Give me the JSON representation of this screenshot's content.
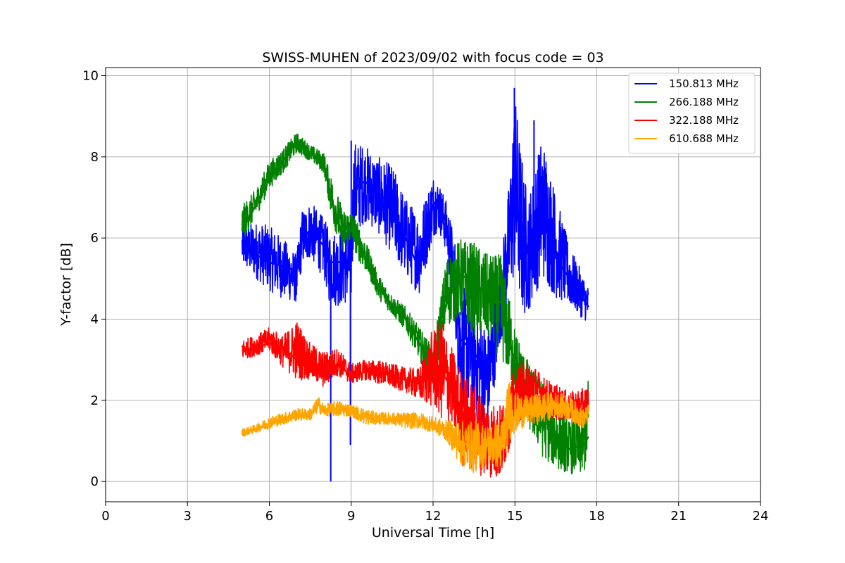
{
  "chart_data": {
    "type": "line",
    "title": "SWISS-MUHEN of 2023/09/02 with focus code = 03",
    "xlabel": "Universal Time [h]",
    "ylabel": "Y-factor [dB]",
    "xlim": [
      0,
      24
    ],
    "ylim": [
      -0.5,
      10.2
    ],
    "xticks": [
      0,
      3,
      6,
      9,
      12,
      15,
      18,
      21,
      24
    ],
    "yticks": [
      0,
      2,
      4,
      6,
      8,
      10
    ],
    "grid": true,
    "legend_position": "top-right",
    "series": [
      {
        "name": "150.813 MHz",
        "color": "#0000ff",
        "x": [
          5.0,
          5.5,
          6.0,
          6.5,
          7.0,
          7.2,
          7.5,
          8.0,
          8.2,
          8.5,
          9.0,
          9.1,
          9.5,
          10.0,
          10.5,
          11.0,
          11.5,
          12.0,
          12.2,
          12.5,
          12.8,
          13.0,
          13.5,
          14.0,
          14.5,
          14.8,
          15.0,
          15.3,
          15.5,
          16.0,
          16.5,
          17.0,
          17.5,
          17.7
        ],
        "y": [
          5.8,
          5.6,
          5.4,
          5.3,
          5.2,
          6.0,
          6.2,
          5.8,
          5.4,
          5.4,
          5.5,
          7.2,
          7.4,
          7.1,
          6.8,
          6.0,
          5.2,
          6.8,
          7.0,
          6.3,
          5.0,
          3.5,
          3.2,
          2.6,
          4.5,
          6.0,
          6.8,
          6.3,
          5.5,
          6.5,
          5.5,
          5.0,
          4.5,
          4.3
        ],
        "range_y": [
          [
            5.3,
            6.3
          ],
          [
            5.0,
            6.4
          ],
          [
            4.7,
            6.3
          ],
          [
            4.5,
            6.0
          ],
          [
            4.4,
            5.6
          ],
          [
            5.3,
            6.7
          ],
          [
            5.5,
            6.9
          ],
          [
            5.0,
            6.5
          ],
          [
            4.4,
            6.2
          ],
          [
            4.3,
            6.2
          ],
          [
            4.4,
            6.5
          ],
          [
            6.0,
            8.4
          ],
          [
            6.4,
            8.3
          ],
          [
            6.1,
            8.0
          ],
          [
            5.6,
            7.8
          ],
          [
            5.0,
            7.0
          ],
          [
            4.6,
            6.6
          ],
          [
            6.0,
            7.6
          ],
          [
            6.2,
            7.4
          ],
          [
            5.6,
            6.9
          ],
          [
            3.8,
            6.0
          ],
          [
            1.8,
            4.8
          ],
          [
            1.5,
            4.7
          ],
          [
            1.2,
            3.7
          ],
          [
            3.5,
            5.5
          ],
          [
            4.5,
            7.5
          ],
          [
            5.0,
            9.6
          ],
          [
            4.0,
            7.8
          ],
          [
            4.2,
            7.0
          ],
          [
            5.0,
            8.6
          ],
          [
            4.5,
            7.1
          ],
          [
            4.3,
            5.8
          ],
          [
            4.0,
            5.1
          ],
          [
            3.9,
            4.8
          ]
        ],
        "spikes": [
          [
            8.25,
            0.0
          ],
          [
            8.97,
            0.9
          ],
          [
            9.0,
            8.4
          ],
          [
            14.98,
            9.7
          ],
          [
            15.7,
            8.9
          ]
        ]
      },
      {
        "name": "266.188 MHz",
        "color": "#008000",
        "x": [
          5.0,
          5.5,
          6.0,
          6.5,
          7.0,
          7.5,
          8.0,
          8.3,
          8.7,
          9.0,
          9.3,
          9.6,
          10.0,
          10.5,
          11.0,
          11.5,
          12.0,
          12.5,
          13.0,
          13.5,
          14.0,
          14.5,
          15.0,
          15.5,
          16.0,
          16.5,
          17.0,
          17.5,
          17.7
        ],
        "y": [
          6.2,
          6.8,
          7.5,
          7.9,
          8.4,
          8.1,
          7.8,
          6.9,
          6.0,
          6.2,
          5.8,
          5.4,
          4.8,
          4.3,
          4.0,
          3.4,
          2.8,
          4.4,
          5.1,
          4.9,
          4.6,
          4.4,
          2.9,
          2.1,
          1.6,
          1.1,
          0.8,
          0.9,
          1.1
        ],
        "range_y": [
          [
            5.9,
            6.8
          ],
          [
            6.5,
            7.2
          ],
          [
            7.2,
            7.9
          ],
          [
            7.6,
            8.2
          ],
          [
            8.1,
            8.6
          ],
          [
            7.9,
            8.3
          ],
          [
            7.6,
            8.1
          ],
          [
            6.4,
            7.5
          ],
          [
            5.6,
            6.7
          ],
          [
            5.9,
            6.7
          ],
          [
            5.4,
            6.3
          ],
          [
            5.1,
            5.8
          ],
          [
            4.5,
            5.1
          ],
          [
            4.1,
            4.6
          ],
          [
            3.7,
            4.3
          ],
          [
            3.0,
            3.8
          ],
          [
            2.3,
            3.3
          ],
          [
            3.8,
            5.6
          ],
          [
            4.0,
            6.0
          ],
          [
            3.6,
            5.9
          ],
          [
            3.5,
            5.6
          ],
          [
            3.0,
            5.6
          ],
          [
            2.2,
            3.8
          ],
          [
            1.3,
            2.9
          ],
          [
            0.6,
            2.5
          ],
          [
            0.3,
            1.9
          ],
          [
            0.2,
            1.5
          ],
          [
            0.1,
            1.8
          ],
          [
            0.5,
            2.7
          ]
        ]
      },
      {
        "name": "322.188 MHz",
        "color": "#ff0000",
        "x": [
          5.0,
          5.5,
          6.0,
          6.5,
          7.0,
          7.5,
          8.0,
          8.5,
          9.0,
          9.5,
          10.0,
          10.5,
          11.0,
          11.5,
          12.0,
          12.3,
          12.7,
          13.0,
          13.5,
          14.0,
          14.5,
          15.0,
          15.5,
          16.0,
          16.5,
          17.0,
          17.5,
          17.7
        ],
        "y": [
          3.2,
          3.3,
          3.4,
          3.3,
          3.0,
          2.9,
          2.7,
          2.9,
          2.6,
          2.7,
          2.7,
          2.6,
          2.5,
          2.4,
          2.6,
          2.7,
          2.3,
          1.6,
          1.3,
          1.1,
          1.0,
          1.9,
          2.1,
          2.1,
          1.9,
          1.8,
          1.8,
          2.0
        ],
        "range_y": [
          [
            3.0,
            3.5
          ],
          [
            3.1,
            3.6
          ],
          [
            3.2,
            3.8
          ],
          [
            2.8,
            3.6
          ],
          [
            2.5,
            4.0
          ],
          [
            2.5,
            3.4
          ],
          [
            2.3,
            3.2
          ],
          [
            2.6,
            3.3
          ],
          [
            2.4,
            2.9
          ],
          [
            2.5,
            3.0
          ],
          [
            2.4,
            3.0
          ],
          [
            2.3,
            2.9
          ],
          [
            2.2,
            2.8
          ],
          [
            2.0,
            2.8
          ],
          [
            1.8,
            3.8
          ],
          [
            1.5,
            4.0
          ],
          [
            1.4,
            3.3
          ],
          [
            0.4,
            2.8
          ],
          [
            0.2,
            2.4
          ],
          [
            0.1,
            2.0
          ],
          [
            0.0,
            1.9
          ],
          [
            1.4,
            2.8
          ],
          [
            1.6,
            3.1
          ],
          [
            1.7,
            2.6
          ],
          [
            1.5,
            2.4
          ],
          [
            1.5,
            2.2
          ],
          [
            1.4,
            2.3
          ],
          [
            1.6,
            2.4
          ]
        ]
      },
      {
        "name": "610.688 MHz",
        "color": "#ffa500",
        "x": [
          5.0,
          5.5,
          6.0,
          6.5,
          7.0,
          7.5,
          7.8,
          8.0,
          8.5,
          9.0,
          9.5,
          10.0,
          10.5,
          11.0,
          11.5,
          12.0,
          12.5,
          13.0,
          13.5,
          14.0,
          14.5,
          14.8,
          15.0,
          15.5,
          16.0,
          16.5,
          17.0,
          17.5,
          17.7
        ],
        "y": [
          1.2,
          1.3,
          1.4,
          1.5,
          1.6,
          1.6,
          1.9,
          1.7,
          1.8,
          1.7,
          1.6,
          1.5,
          1.5,
          1.5,
          1.5,
          1.4,
          1.3,
          1.0,
          0.8,
          0.9,
          0.8,
          1.4,
          1.6,
          1.7,
          1.8,
          1.9,
          1.8,
          1.6,
          1.7
        ],
        "range_y": [
          [
            1.1,
            1.3
          ],
          [
            1.2,
            1.4
          ],
          [
            1.3,
            1.6
          ],
          [
            1.4,
            1.7
          ],
          [
            1.5,
            1.8
          ],
          [
            1.5,
            1.8
          ],
          [
            1.7,
            2.1
          ],
          [
            1.6,
            1.9
          ],
          [
            1.6,
            2.0
          ],
          [
            1.6,
            1.9
          ],
          [
            1.4,
            1.8
          ],
          [
            1.4,
            1.7
          ],
          [
            1.4,
            1.7
          ],
          [
            1.3,
            1.7
          ],
          [
            1.3,
            1.7
          ],
          [
            1.2,
            1.6
          ],
          [
            1.0,
            1.5
          ],
          [
            0.4,
            1.5
          ],
          [
            0.2,
            1.5
          ],
          [
            0.4,
            1.4
          ],
          [
            0.3,
            1.5
          ],
          [
            1.0,
            2.6
          ],
          [
            1.2,
            2.2
          ],
          [
            1.4,
            2.1
          ],
          [
            1.4,
            2.2
          ],
          [
            1.6,
            2.2
          ],
          [
            1.5,
            2.1
          ],
          [
            1.3,
            1.8
          ],
          [
            1.4,
            1.9
          ]
        ]
      }
    ]
  }
}
